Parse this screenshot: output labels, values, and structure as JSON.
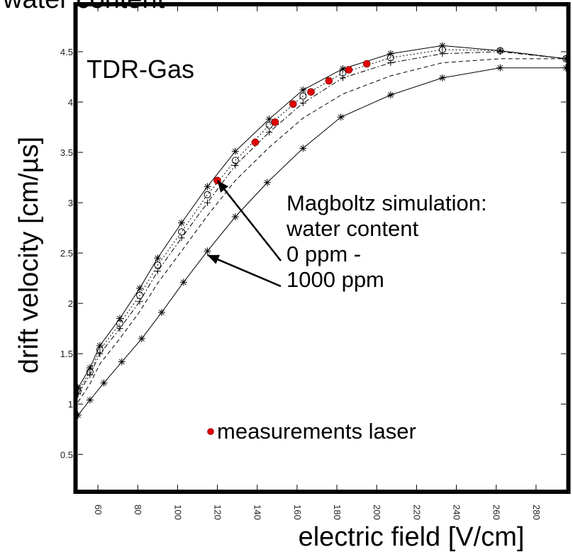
{
  "header": {
    "title_fragment": "water content"
  },
  "chart_data": {
    "type": "scatter",
    "title": "TDR-Gas",
    "xlabel": "electric field [V/cm]",
    "ylabel": "drift velocity [cm/µs]",
    "xlim": [
      50,
      295
    ],
    "ylim": [
      0.15,
      4.95
    ],
    "grid": false,
    "x_ticks": [
      "60",
      "80",
      "100",
      "120",
      "140",
      "160",
      "180",
      "200",
      "220",
      "240",
      "260",
      "280"
    ],
    "y_ticks": [
      "0.5",
      "1",
      "1.5",
      "2",
      "2.5",
      "3",
      "3.5",
      "4",
      "4.5"
    ],
    "annotation": {
      "lines": [
        "Magboltz simulation:",
        "water content",
        "0 ppm -",
        "1000 ppm"
      ],
      "arrow_targets": [
        [
          120,
          3.22
        ],
        [
          115,
          2.48
        ]
      ]
    },
    "legend": {
      "label": "measurements laser",
      "placement": "bottom-center",
      "color": "#e00000"
    },
    "series": [
      {
        "role": "simulation",
        "marker": "star",
        "dash": "solid",
        "x": [
          50,
          56,
          61,
          71,
          81,
          90,
          102,
          115,
          129,
          146,
          163,
          183,
          207,
          233,
          262,
          295
        ],
        "y": [
          1.16,
          1.36,
          1.58,
          1.85,
          2.15,
          2.45,
          2.8,
          3.16,
          3.51,
          3.83,
          4.12,
          4.33,
          4.48,
          4.56,
          4.51,
          4.43
        ]
      },
      {
        "role": "simulation",
        "marker": "circle",
        "dash": "dotted",
        "x": [
          50,
          56,
          61,
          71,
          81,
          90,
          102,
          115,
          129,
          146,
          163,
          183,
          207,
          233,
          262,
          295
        ],
        "y": [
          1.13,
          1.32,
          1.54,
          1.8,
          2.08,
          2.38,
          2.71,
          3.08,
          3.42,
          3.77,
          4.06,
          4.29,
          4.44,
          4.52,
          4.51,
          4.43
        ]
      },
      {
        "role": "simulation",
        "marker": "plus",
        "dash": "dashdot",
        "x": [
          50,
          56,
          61,
          71,
          81,
          90,
          102,
          115,
          129,
          146,
          163,
          183,
          207,
          233,
          262,
          295
        ],
        "y": [
          1.1,
          1.29,
          1.5,
          1.75,
          2.02,
          2.32,
          2.65,
          3.0,
          3.37,
          3.7,
          3.99,
          4.24,
          4.39,
          4.48,
          4.5,
          4.43
        ]
      },
      {
        "role": "simulation",
        "marker": "none",
        "dash": "dashed",
        "x": [
          50,
          56,
          61,
          71,
          81,
          90,
          102,
          115,
          129,
          146,
          163,
          183,
          207,
          233,
          262,
          295
        ],
        "y": [
          1.02,
          1.2,
          1.4,
          1.65,
          1.92,
          2.2,
          2.52,
          2.87,
          3.22,
          3.55,
          3.84,
          4.08,
          4.26,
          4.39,
          4.43,
          4.43
        ]
      },
      {
        "role": "simulation",
        "marker": "star",
        "dash": "solid",
        "x": [
          50,
          56,
          63,
          72,
          82,
          92,
          103,
          115,
          129,
          145,
          163,
          182,
          207,
          233,
          262,
          295
        ],
        "y": [
          0.89,
          1.04,
          1.21,
          1.42,
          1.65,
          1.91,
          2.21,
          2.52,
          2.86,
          3.2,
          3.54,
          3.85,
          4.07,
          4.24,
          4.34,
          4.34
        ]
      },
      {
        "role": "measurement",
        "marker": "dot",
        "color": "#e00000",
        "x": [
          120,
          139,
          149,
          158,
          167,
          176,
          186,
          195
        ],
        "y": [
          3.22,
          3.6,
          3.8,
          3.98,
          4.1,
          4.21,
          4.32,
          4.38
        ]
      }
    ]
  }
}
